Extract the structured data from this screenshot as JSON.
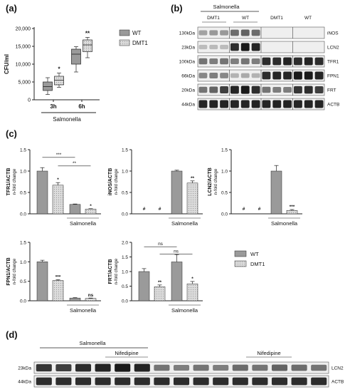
{
  "panels": {
    "a": "(a)",
    "b": "(b)",
    "c": "(c)",
    "d": "(d)"
  },
  "colors": {
    "wt": "#9a9a9a",
    "dmt1": "#dcdcdc",
    "axis": "#222222",
    "blot_bg": "#efefef",
    "band": "#1a1a1a"
  },
  "chart_data": [
    {
      "id": "a",
      "type": "box",
      "ylabel": "CFU/ml",
      "ylim": [
        0,
        20000
      ],
      "yticks": [
        "0",
        "5,000",
        "10,000",
        "15,000",
        "20,000"
      ],
      "categories": [
        "3h",
        "6h"
      ],
      "group_label": "Salmonella",
      "series": [
        {
          "name": "WT",
          "boxes": [
            {
              "min": 1500,
              "q1": 2600,
              "median": 3700,
              "q3": 5000,
              "max": 6200
            },
            {
              "min": 7800,
              "q1": 10000,
              "median": 12800,
              "q3": 14200,
              "max": 14900
            }
          ]
        },
        {
          "name": "DMT1",
          "boxes": [
            {
              "min": 3500,
              "q1": 4200,
              "median": 5500,
              "q3": 6600,
              "max": 7500
            },
            {
              "min": 11800,
              "q1": 13500,
              "median": 15400,
              "q3": 16800,
              "max": 17500
            }
          ]
        }
      ],
      "annotations": [
        "*",
        "**"
      ]
    },
    {
      "id": "c1",
      "type": "bar",
      "ylabel": "TFR1/ACTB",
      "ylabel2": "n-fold change",
      "ylim": [
        0,
        1.5
      ],
      "yticks": [
        "0.0",
        "0.5",
        "1.0",
        "1.5"
      ],
      "group_label": "Salmonella",
      "values": [
        1.0,
        0.67,
        0.22,
        0.11
      ],
      "errors": [
        0.08,
        0.06,
        0.01,
        0.01
      ],
      "stars": [
        "",
        "*",
        "",
        "*"
      ],
      "brackets": [
        {
          "from": 0,
          "to": 2,
          "label": "***",
          "y": 1.32
        },
        {
          "from": 1,
          "to": 3,
          "label": "**",
          "y": 1.12
        }
      ]
    },
    {
      "id": "c2",
      "type": "bar",
      "ylabel": "iNOS/ACTB",
      "ylabel2": "n-fold change",
      "ylim": [
        0,
        1.5
      ],
      "yticks": [
        "0.0",
        "0.5",
        "1.0",
        "1.5"
      ],
      "group_label": "Salmonella",
      "values": [
        0,
        0,
        1.0,
        0.72
      ],
      "errors": [
        0,
        0,
        0.02,
        0.05
      ],
      "stars": [
        "#",
        "#",
        "",
        "**"
      ],
      "brackets": []
    },
    {
      "id": "c3",
      "type": "bar",
      "ylabel": "LCN2/ACTB",
      "ylabel2": "n-fold change",
      "ylim": [
        0,
        1.5
      ],
      "yticks": [
        "0.0",
        "0.5",
        "1.0",
        "1.5"
      ],
      "group_label": "Salmonella",
      "values": [
        0,
        0,
        1.0,
        0.08
      ],
      "errors": [
        0,
        0,
        0.13,
        0.02
      ],
      "stars": [
        "#",
        "#",
        "",
        "***"
      ],
      "brackets": []
    },
    {
      "id": "c4",
      "type": "bar",
      "ylabel": "FPN1/ACTB",
      "ylabel2": "n-fold change",
      "ylim": [
        0,
        1.5
      ],
      "yticks": [
        "0.0",
        "0.5",
        "1.0",
        "1.5"
      ],
      "group_label": "Salmonella",
      "values": [
        1.0,
        0.52,
        0.07,
        0.06
      ],
      "errors": [
        0.04,
        0.02,
        0.01,
        0.01
      ],
      "stars": [
        "",
        "***",
        "",
        "ns"
      ],
      "brackets": []
    },
    {
      "id": "c5",
      "type": "bar",
      "ylabel": "FRT/ACTB",
      "ylabel2": "n-fold change",
      "ylim": [
        0,
        2.0
      ],
      "yticks": [
        "0.0",
        "0.5",
        "1.0",
        "1.5",
        "2.0"
      ],
      "group_label": "Salmonella",
      "values": [
        1.0,
        0.48,
        1.33,
        0.58
      ],
      "errors": [
        0.1,
        0.06,
        0.25,
        0.08
      ],
      "stars": [
        "",
        "**",
        "",
        "*"
      ],
      "brackets": [
        {
          "from": 0,
          "to": 2,
          "label": "ns",
          "y": 1.85
        },
        {
          "from": 1,
          "to": 3,
          "label": "ns",
          "y": 1.6
        }
      ]
    }
  ],
  "legend_a": {
    "wt": "WT",
    "dmt1": "DMT1"
  },
  "legend_c": {
    "wt": "WT",
    "dmt1": "DMT1"
  },
  "blot_b": {
    "header_salmonella": "Salmonella",
    "groups": [
      "DMT1",
      "WT",
      "DMT1",
      "WT"
    ],
    "rows": [
      {
        "kda": "130kDa",
        "protein": "iNOS",
        "lanes": [
          0.25,
          0.3,
          0.3,
          0.55,
          0.6,
          0.55,
          0,
          0,
          0,
          0,
          0,
          0
        ]
      },
      {
        "kda": "23kDa",
        "protein": "LCN2",
        "lanes": [
          0.1,
          0.12,
          0.1,
          0.9,
          1.0,
          0.95,
          0,
          0,
          0,
          0,
          0,
          0
        ]
      },
      {
        "kda": "100kDa",
        "protein": "TFR1",
        "lanes": [
          0.5,
          0.45,
          0.5,
          0.45,
          0.5,
          0.45,
          0.9,
          0.9,
          0.95,
          0.9,
          0.95,
          0.9
        ]
      },
      {
        "kda": "66kDa",
        "protein": "FPN1",
        "lanes": [
          0.4,
          0.45,
          0.4,
          0.15,
          0.2,
          0.15,
          0.9,
          0.95,
          0.95,
          1.0,
          1.0,
          0.95
        ]
      },
      {
        "kda": "20kDa",
        "protein": "FRT",
        "lanes": [
          0.5,
          0.6,
          0.8,
          0.95,
          1.0,
          0.9,
          0.5,
          0.45,
          0.45,
          0.85,
          0.9,
          0.8
        ]
      },
      {
        "kda": "44kDa",
        "protein": "ACTB",
        "lanes": [
          0.95,
          0.95,
          0.95,
          0.95,
          0.95,
          0.95,
          0.95,
          0.95,
          0.95,
          0.95,
          0.95,
          0.95
        ]
      }
    ]
  },
  "blot_d": {
    "header_salmonella": "Salmonella",
    "nifedipine_1": "Nifedipine",
    "nifedipine_2": "Nifedipine",
    "rows": [
      {
        "kda": "23kDa",
        "protein": "LCN2",
        "lanes": [
          0.85,
          0.8,
          0.9,
          0.95,
          1.0,
          0.95,
          0.5,
          0.45,
          0.5,
          0.45,
          0.55,
          0.5,
          0.6,
          0.55,
          0.5
        ]
      },
      {
        "kda": "44kDa",
        "protein": "ACTB",
        "lanes": [
          0.9,
          0.9,
          0.9,
          0.9,
          0.9,
          0.9,
          0.9,
          0.9,
          0.9,
          0.9,
          0.9,
          0.9,
          0.9,
          0.9,
          0.9
        ]
      }
    ]
  }
}
